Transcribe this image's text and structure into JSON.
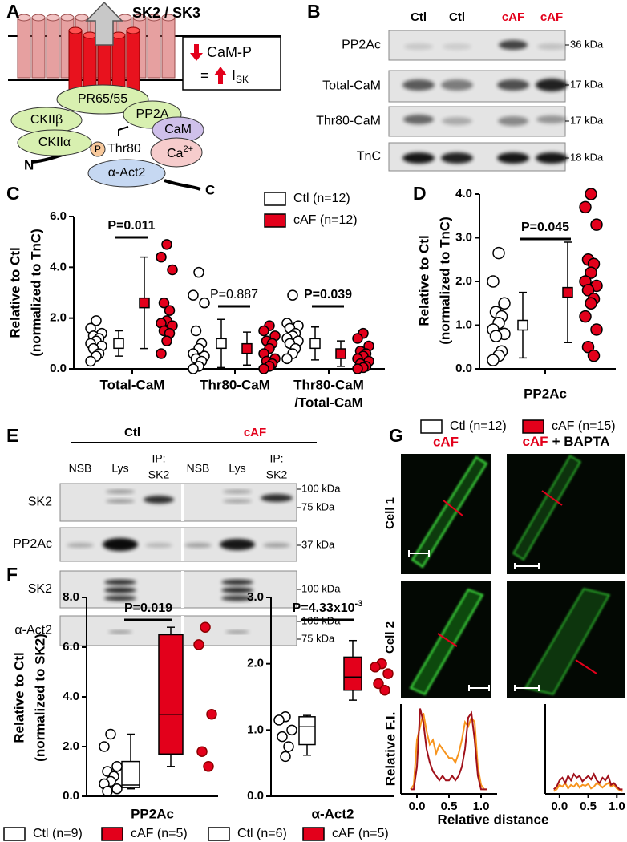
{
  "panel_labels": [
    "A",
    "B",
    "C",
    "D",
    "E",
    "F",
    "G"
  ],
  "diagram": {
    "title": "SK2 / SK3",
    "box_line1": "CaM-P",
    "box_equals": "=",
    "box_current": "I",
    "box_subscript": "SK",
    "proteins": [
      "PR65/55",
      "PP2A",
      "CKIIβ",
      "CKIIα",
      "CaM",
      "α-Act2"
    ],
    "phospho": "P",
    "site": "Thr80",
    "calcium": "Ca",
    "calcium_charge": "2+",
    "n_terminus": "N",
    "c_terminus": "C"
  },
  "blot_b": {
    "lanes": [
      "Ctl",
      "Ctl",
      "cAF",
      "cAF"
    ],
    "rows": [
      {
        "label": "PP2Ac",
        "markers": [
          "36 kDa"
        ]
      },
      {
        "label": "Total-CaM",
        "markers": [
          "17 kDa"
        ]
      },
      {
        "label": "Thr80-CaM",
        "markers": [
          "17 kDa"
        ]
      },
      {
        "label": "TnC",
        "markers": [
          "18 kDa"
        ]
      }
    ]
  },
  "blot_e": {
    "groups": [
      "Ctl",
      "cAF"
    ],
    "lanes": [
      [
        "NSB"
      ],
      [
        "Lys"
      ],
      [
        "IP:",
        "SK2"
      ],
      [
        "NSB"
      ],
      [
        "Lys"
      ],
      [
        "IP:",
        "SK2"
      ]
    ],
    "rows": [
      {
        "label": "SK2",
        "markers": [
          "100 kDa",
          "75 kDa"
        ]
      },
      {
        "label": "PP2Ac",
        "markers": [
          "37 kDa"
        ]
      },
      {
        "label": "SK2",
        "markers": [
          "100 kDa"
        ]
      },
      {
        "label": "α-Act2",
        "markers": [
          "100 kDa",
          "75 kDa"
        ]
      }
    ]
  },
  "micrographs_g": {
    "columns": [
      {
        "text": "cAF"
      },
      {
        "text": "cAF",
        "suffix": "+ BAPTA"
      }
    ],
    "rows": [
      "Cell 1",
      "Cell 2"
    ]
  },
  "chart_data": [
    {
      "type": "dot",
      "ylabel": [
        "Relative to Ctl",
        "(normalized to TnC)"
      ],
      "categories": [
        [
          "Total-CaM"
        ],
        [
          "Thr80-CaM"
        ],
        [
          "Thr80-CaM",
          "/Total-CaM"
        ]
      ],
      "ylim": [
        0,
        6
      ],
      "yticks": [
        {
          "value": 0,
          "label": "0.0"
        },
        {
          "value": 2,
          "label": "2.0"
        },
        {
          "value": 4,
          "label": "4.0"
        },
        {
          "value": 6,
          "label": "6.0"
        }
      ],
      "series": [
        {
          "name": "Ctl (n=12)",
          "color": "#ffffff",
          "points": [
            [
              1.9,
              1.6,
              1.4,
              1.3,
              1.2,
              1.1,
              1.0,
              0.9,
              0.8,
              0.6,
              0.5,
              0.3
            ],
            [
              3.8,
              2.9,
              2.6,
              1.5,
              1.0,
              0.8,
              0.6,
              0.5,
              0.4,
              0.3,
              0.1,
              0.0
            ],
            [
              2.9,
              1.8,
              1.7,
              1.6,
              1.4,
              1.3,
              1.2,
              1.1,
              1.0,
              0.8,
              0.6,
              0.4
            ]
          ],
          "mean": [
            1.0,
            1.0,
            1.0
          ],
          "sd": [
            0.5,
            0.95,
            0.65
          ]
        },
        {
          "name": "cAF (n=12)",
          "color": "#e3001b",
          "points": [
            [
              4.9,
              4.4,
              3.9,
              2.6,
              2.3,
              1.9,
              1.8,
              1.7,
              1.5,
              1.4,
              1.1,
              0.6
            ],
            [
              1.7,
              1.5,
              1.3,
              1.1,
              1.0,
              0.8,
              0.6,
              0.4,
              0.3,
              0.2,
              0.1,
              0.0
            ],
            [
              1.4,
              1.2,
              0.9,
              0.7,
              0.6,
              0.5,
              0.4,
              0.3,
              0.2,
              0.1,
              0.05,
              0.0
            ]
          ],
          "mean": [
            2.6,
            0.8,
            0.6
          ],
          "sd": [
            1.8,
            0.65,
            0.5
          ]
        }
      ],
      "annotations": [
        {
          "text": "P=0.011",
          "bold": true
        },
        {
          "text": "P=0.887",
          "bold": false
        },
        {
          "text": "P=0.039",
          "bold": true
        }
      ]
    },
    {
      "type": "dot",
      "ylabel": [
        "Relative to Ctl",
        "(normalized to TnC)"
      ],
      "categories": [
        [
          "PP2Ac"
        ]
      ],
      "ylim": [
        0,
        4
      ],
      "yticks": [
        {
          "value": 0,
          "label": "0.0"
        },
        {
          "value": 1,
          "label": "1.0"
        },
        {
          "value": 2,
          "label": "2.0"
        },
        {
          "value": 3,
          "label": "3.0"
        },
        {
          "value": 4,
          "label": "4.0"
        }
      ],
      "series": [
        {
          "name": "Ctl (n=12)",
          "color": "#ffffff",
          "points": [
            [
              2.65,
              2.0,
              1.5,
              1.3,
              1.2,
              1.05,
              0.9,
              0.8,
              0.75,
              0.4,
              0.3,
              0.2
            ]
          ],
          "mean": [
            1.0
          ],
          "sd": [
            0.75
          ]
        },
        {
          "name": "cAF (n=15)",
          "color": "#e3001b",
          "points": [
            [
              4.0,
              3.7,
              3.3,
              2.5,
              2.4,
              2.2,
              2.0,
              1.9,
              1.8,
              1.6,
              1.5,
              1.2,
              0.9,
              0.5,
              0.3
            ]
          ],
          "mean": [
            1.75
          ],
          "sd": [
            1.15
          ]
        }
      ],
      "annotations": [
        {
          "text": "P=0.045",
          "bold": true
        }
      ]
    },
    {
      "type": "box",
      "ylabel": [
        "Relative to Ctl",
        "(normalized to SK2)"
      ],
      "categories": [
        "PP2Ac"
      ],
      "ylim": [
        0,
        8
      ],
      "yticks": [
        {
          "value": 0,
          "label": "0.0"
        },
        {
          "value": 2,
          "label": "2.0"
        },
        {
          "value": 4,
          "label": "4.0"
        },
        {
          "value": 6,
          "label": "6.0"
        },
        {
          "value": 8,
          "label": "8.0"
        }
      ],
      "series": [
        {
          "name": "Ctl (n=9)",
          "color": "#ffffff",
          "points": [
            [
              2.5,
              2.0,
              1.2,
              1.0,
              0.8,
              0.6,
              0.5,
              0.3,
              0.2
            ]
          ],
          "box": [
            {
              "min": 0.3,
              "q1": 0.35,
              "median": 0.45,
              "q3": 1.4,
              "max": 2.5
            }
          ]
        },
        {
          "name": "cAF (n=5)",
          "color": "#e3001b",
          "points": [
            [
              6.8,
              6.1,
              3.3,
              1.8,
              1.2
            ]
          ],
          "box": [
            {
              "min": 1.2,
              "q1": 1.7,
              "median": 3.3,
              "q3": 6.5,
              "max": 6.8
            }
          ]
        }
      ],
      "annotations": [
        {
          "text": "P=0.019",
          "bold": true
        }
      ]
    },
    {
      "type": "box",
      "categories": [
        "α-Act2"
      ],
      "ylim": [
        0,
        3
      ],
      "yticks": [
        {
          "value": 0,
          "label": "0.0"
        },
        {
          "value": 1,
          "label": "1.0"
        },
        {
          "value": 2,
          "label": "2.0"
        },
        {
          "value": 3,
          "label": "3.0"
        }
      ],
      "series": [
        {
          "name": "Ctl (n=6)",
          "color": "#ffffff",
          "points": [
            [
              1.2,
              1.15,
              1.0,
              0.9,
              0.75,
              0.6
            ]
          ],
          "box": [
            {
              "min": 0.62,
              "q1": 0.78,
              "median": 1.05,
              "q3": 1.2,
              "max": 1.22
            }
          ]
        },
        {
          "name": "cAF (n=5)",
          "color": "#e3001b",
          "points": [
            [
              2.0,
              1.95,
              1.85,
              1.7,
              1.6
            ]
          ],
          "box": [
            {
              "min": 1.45,
              "q1": 1.6,
              "median": 1.8,
              "q3": 2.1,
              "max": 2.35
            }
          ]
        }
      ],
      "annotations": [
        {
          "text": "P=4.33x10",
          "superscript": "-3",
          "bold": true
        }
      ]
    },
    {
      "type": "line",
      "ylabel": "Relative F.I.",
      "xlabel": "Relative distance",
      "xlim": [
        -0.25,
        1.25
      ],
      "xticks": [
        {
          "value": 0,
          "label": "0.0"
        },
        {
          "value": 0.5,
          "label": "0.5"
        },
        {
          "value": 1,
          "label": "1.0"
        }
      ],
      "ylim": [
        0,
        1
      ],
      "x": [
        -0.1,
        -0.05,
        0,
        0.05,
        0.1,
        0.15,
        0.2,
        0.25,
        0.3,
        0.35,
        0.4,
        0.45,
        0.5,
        0.55,
        0.6,
        0.65,
        0.7,
        0.75,
        0.8,
        0.85,
        0.9,
        0.95,
        1.0,
        1.05,
        1.1
      ],
      "series": [
        {
          "color": "#f7941d",
          "values": [
            0.05,
            0.1,
            0.6,
            0.75,
            0.9,
            0.7,
            0.55,
            0.6,
            0.45,
            0.55,
            0.5,
            0.45,
            0.4,
            0.4,
            0.35,
            0.45,
            0.6,
            0.8,
            0.75,
            0.85,
            0.8,
            0.3,
            0.1,
            0.05,
            0.05
          ]
        },
        {
          "color": "#a0101a",
          "values": [
            0.05,
            0.05,
            0.3,
            0.95,
            0.8,
            0.5,
            0.35,
            0.25,
            0.2,
            0.15,
            0.2,
            0.15,
            0.15,
            0.2,
            0.15,
            0.2,
            0.3,
            0.5,
            0.85,
            0.9,
            0.6,
            0.2,
            0.05,
            0.05,
            0.05
          ]
        }
      ]
    },
    {
      "type": "line",
      "xlim": [
        -0.25,
        1.15
      ],
      "xticks": [
        {
          "value": 0,
          "label": "0.0"
        },
        {
          "value": 0.5,
          "label": "0.5"
        },
        {
          "value": 1,
          "label": "1.0"
        }
      ],
      "ylim": [
        0,
        1
      ],
      "x": [
        -0.1,
        -0.05,
        0,
        0.05,
        0.1,
        0.15,
        0.2,
        0.25,
        0.3,
        0.35,
        0.4,
        0.45,
        0.5,
        0.55,
        0.6,
        0.65,
        0.7,
        0.75,
        0.8,
        0.85,
        0.9,
        0.95,
        1.0,
        1.05,
        1.1
      ],
      "series": [
        {
          "color": "#f7941d",
          "values": [
            0.03,
            0.05,
            0.1,
            0.08,
            0.12,
            0.06,
            0.1,
            0.08,
            0.12,
            0.07,
            0.1,
            0.09,
            0.11,
            0.06,
            0.08,
            0.12,
            0.1,
            0.07,
            0.1,
            0.12,
            0.08,
            0.1,
            0.06,
            0.04,
            0.03
          ]
        },
        {
          "color": "#a0101a",
          "values": [
            0.05,
            0.08,
            0.15,
            0.18,
            0.12,
            0.2,
            0.15,
            0.22,
            0.18,
            0.2,
            0.14,
            0.17,
            0.2,
            0.16,
            0.22,
            0.15,
            0.12,
            0.18,
            0.15,
            0.2,
            0.1,
            0.12,
            0.08,
            0.05,
            0.05
          ]
        }
      ]
    }
  ]
}
